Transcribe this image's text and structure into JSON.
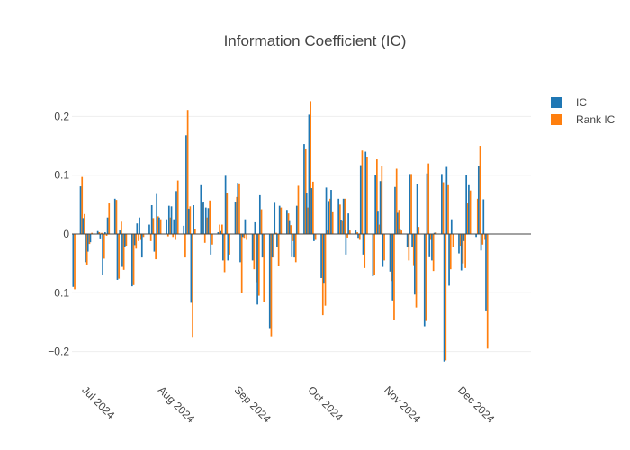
{
  "chart_data": {
    "type": "bar",
    "title": "Information Coefficient (IC)",
    "xlabel": "",
    "ylabel": "",
    "x_start": "2024-06-28",
    "x_end": "2024-12-31",
    "ylim": [
      -0.245,
      0.245
    ],
    "yticks": [
      -0.2,
      -0.1,
      0,
      0.1,
      0.2
    ],
    "ytick_labels": [
      "−0.2",
      "−0.1",
      "0",
      "0.1",
      "0.2"
    ],
    "xticks": [
      {
        "date": "2024-07-01",
        "label": "Jul 2024"
      },
      {
        "date": "2024-08-01",
        "label": "Aug 2024"
      },
      {
        "date": "2024-09-01",
        "label": "Sep 2024"
      },
      {
        "date": "2024-10-01",
        "label": "Oct 2024"
      },
      {
        "date": "2024-11-01",
        "label": "Nov 2024"
      },
      {
        "date": "2024-12-01",
        "label": "Dec 2024"
      }
    ],
    "legend_position": "top-right",
    "grid": true,
    "series": [
      {
        "name": "IC",
        "color": "#1f77b4"
      },
      {
        "name": "Rank IC",
        "color": "#ff7f0e"
      }
    ],
    "points": [
      {
        "date": "2024-06-28",
        "ic": -0.09,
        "rank_ic": -0.094
      },
      {
        "date": "2024-07-01",
        "ic": 0.081,
        "rank_ic": 0.097
      },
      {
        "date": "2024-07-02",
        "ic": 0.027,
        "rank_ic": 0.034
      },
      {
        "date": "2024-07-03",
        "ic": -0.048,
        "rank_ic": -0.052
      },
      {
        "date": "2024-07-04",
        "ic": -0.03,
        "rank_ic": -0.017
      },
      {
        "date": "2024-07-05",
        "ic": -0.014,
        "rank_ic": 0.002
      },
      {
        "date": "2024-07-08",
        "ic": 0.005,
        "rank_ic": 0.003
      },
      {
        "date": "2024-07-09",
        "ic": -0.009,
        "rank_ic": 0.002
      },
      {
        "date": "2024-07-10",
        "ic": -0.07,
        "rank_ic": -0.042
      },
      {
        "date": "2024-07-11",
        "ic": 0.003,
        "rank_ic": -0.003
      },
      {
        "date": "2024-07-12",
        "ic": 0.028,
        "rank_ic": 0.052
      },
      {
        "date": "2024-07-15",
        "ic": 0.06,
        "rank_ic": 0.058
      },
      {
        "date": "2024-07-16",
        "ic": -0.078,
        "rank_ic": -0.076
      },
      {
        "date": "2024-07-17",
        "ic": 0.006,
        "rank_ic": 0.021
      },
      {
        "date": "2024-07-18",
        "ic": -0.056,
        "rank_ic": -0.061
      },
      {
        "date": "2024-07-19",
        "ic": -0.022,
        "rank_ic": -0.02
      },
      {
        "date": "2024-07-22",
        "ic": -0.089,
        "rank_ic": -0.087
      },
      {
        "date": "2024-07-23",
        "ic": -0.019,
        "rank_ic": -0.025
      },
      {
        "date": "2024-07-24",
        "ic": 0.018,
        "rank_ic": -0.012
      },
      {
        "date": "2024-07-25",
        "ic": 0.028,
        "rank_ic": -0.01
      },
      {
        "date": "2024-07-26",
        "ic": -0.04,
        "rank_ic": -0.005
      },
      {
        "date": "2024-07-29",
        "ic": 0.016,
        "rank_ic": -0.012
      },
      {
        "date": "2024-07-30",
        "ic": 0.049,
        "rank_ic": 0.027
      },
      {
        "date": "2024-07-31",
        "ic": -0.03,
        "rank_ic": -0.043
      },
      {
        "date": "2024-08-01",
        "ic": 0.068,
        "rank_ic": 0.03
      },
      {
        "date": "2024-08-02",
        "ic": 0.028,
        "rank_ic": 0.025
      },
      {
        "date": "2024-08-05",
        "ic": 0.025,
        "rank_ic": -0.004
      },
      {
        "date": "2024-08-06",
        "ic": 0.048,
        "rank_ic": 0.028
      },
      {
        "date": "2024-08-07",
        "ic": 0.047,
        "rank_ic": -0.005
      },
      {
        "date": "2024-08-08",
        "ic": 0.025,
        "rank_ic": -0.01
      },
      {
        "date": "2024-08-09",
        "ic": 0.073,
        "rank_ic": 0.091
      },
      {
        "date": "2024-08-12",
        "ic": 0.014,
        "rank_ic": -0.04
      },
      {
        "date": "2024-08-13",
        "ic": 0.168,
        "rank_ic": 0.211
      },
      {
        "date": "2024-08-14",
        "ic": 0.043,
        "rank_ic": 0.047
      },
      {
        "date": "2024-08-15",
        "ic": -0.117,
        "rank_ic": -0.175
      },
      {
        "date": "2024-08-16",
        "ic": 0.049,
        "rank_ic": 0.008
      },
      {
        "date": "2024-08-19",
        "ic": 0.083,
        "rank_ic": 0.052
      },
      {
        "date": "2024-08-20",
        "ic": 0.055,
        "rank_ic": -0.015
      },
      {
        "date": "2024-08-21",
        "ic": 0.045,
        "rank_ic": 0.028
      },
      {
        "date": "2024-08-22",
        "ic": 0.044,
        "rank_ic": 0.057
      },
      {
        "date": "2024-08-23",
        "ic": -0.035,
        "rank_ic": -0.018
      },
      {
        "date": "2024-08-26",
        "ic": 0.003,
        "rank_ic": 0.016
      },
      {
        "date": "2024-08-27",
        "ic": 0.005,
        "rank_ic": 0.016
      },
      {
        "date": "2024-08-28",
        "ic": -0.045,
        "rank_ic": -0.065
      },
      {
        "date": "2024-08-29",
        "ic": 0.099,
        "rank_ic": 0.069
      },
      {
        "date": "2024-08-30",
        "ic": -0.045,
        "rank_ic": -0.035
      },
      {
        "date": "2024-09-02",
        "ic": 0.055,
        "rank_ic": 0.063
      },
      {
        "date": "2024-09-03",
        "ic": 0.087,
        "rank_ic": 0.086
      },
      {
        "date": "2024-09-04",
        "ic": -0.048,
        "rank_ic": -0.1
      },
      {
        "date": "2024-09-05",
        "ic": -0.005,
        "rank_ic": -0.008
      },
      {
        "date": "2024-09-06",
        "ic": 0.025,
        "rank_ic": -0.01
      },
      {
        "date": "2024-09-09",
        "ic": -0.045,
        "rank_ic": -0.06
      },
      {
        "date": "2024-09-10",
        "ic": 0.02,
        "rank_ic": -0.082
      },
      {
        "date": "2024-09-11",
        "ic": -0.12,
        "rank_ic": -0.105
      },
      {
        "date": "2024-09-12",
        "ic": 0.066,
        "rank_ic": 0.042
      },
      {
        "date": "2024-09-13",
        "ic": -0.04,
        "rank_ic": -0.115
      },
      {
        "date": "2024-09-16",
        "ic": -0.16,
        "rank_ic": -0.174
      },
      {
        "date": "2024-09-17",
        "ic": -0.04,
        "rank_ic": -0.04
      },
      {
        "date": "2024-09-18",
        "ic": 0.053,
        "rank_ic": 0.002
      },
      {
        "date": "2024-09-19",
        "ic": -0.022,
        "rank_ic": -0.055
      },
      {
        "date": "2024-09-20",
        "ic": 0.048,
        "rank_ic": 0.045
      },
      {
        "date": "2024-09-23",
        "ic": 0.041,
        "rank_ic": 0.035
      },
      {
        "date": "2024-09-24",
        "ic": 0.022,
        "rank_ic": 0.015
      },
      {
        "date": "2024-09-25",
        "ic": -0.038,
        "rank_ic": -0.012
      },
      {
        "date": "2024-09-26",
        "ic": -0.04,
        "rank_ic": -0.048
      },
      {
        "date": "2024-09-27",
        "ic": 0.048,
        "rank_ic": 0.082
      },
      {
        "date": "2024-09-30",
        "ic": 0.153,
        "rank_ic": 0.144
      },
      {
        "date": "2024-10-01",
        "ic": 0.07,
        "rank_ic": 0.045
      },
      {
        "date": "2024-10-02",
        "ic": 0.203,
        "rank_ic": 0.226
      },
      {
        "date": "2024-10-03",
        "ic": 0.078,
        "rank_ic": 0.089
      },
      {
        "date": "2024-10-04",
        "ic": -0.012,
        "rank_ic": -0.01
      },
      {
        "date": "2024-10-07",
        "ic": -0.075,
        "rank_ic": -0.138
      },
      {
        "date": "2024-10-08",
        "ic": -0.083,
        "rank_ic": -0.122
      },
      {
        "date": "2024-10-09",
        "ic": 0.079,
        "rank_ic": 0.006
      },
      {
        "date": "2024-10-10",
        "ic": 0.056,
        "rank_ic": 0.06
      },
      {
        "date": "2024-10-11",
        "ic": 0.075,
        "rank_ic": 0.037
      },
      {
        "date": "2024-10-14",
        "ic": 0.06,
        "rank_ic": 0.05
      },
      {
        "date": "2024-10-15",
        "ic": 0.023,
        "rank_ic": 0.022
      },
      {
        "date": "2024-10-16",
        "ic": 0.06,
        "rank_ic": 0.06
      },
      {
        "date": "2024-10-17",
        "ic": -0.035,
        "rank_ic": -0.006
      },
      {
        "date": "2024-10-18",
        "ic": 0.035,
        "rank_ic": 0.006
      },
      {
        "date": "2024-10-21",
        "ic": 0.006,
        "rank_ic": 0.003
      },
      {
        "date": "2024-10-22",
        "ic": -0.008,
        "rank_ic": -0.01
      },
      {
        "date": "2024-10-23",
        "ic": 0.117,
        "rank_ic": 0.142
      },
      {
        "date": "2024-10-24",
        "ic": -0.035,
        "rank_ic": -0.058
      },
      {
        "date": "2024-10-25",
        "ic": 0.14,
        "rank_ic": 0.131
      },
      {
        "date": "2024-10-28",
        "ic": -0.072,
        "rank_ic": -0.069
      },
      {
        "date": "2024-10-29",
        "ic": 0.101,
        "rank_ic": 0.127
      },
      {
        "date": "2024-10-30",
        "ic": 0.038,
        "rank_ic": 0.016
      },
      {
        "date": "2024-10-31",
        "ic": 0.09,
        "rank_ic": 0.115
      },
      {
        "date": "2024-11-01",
        "ic": -0.056,
        "rank_ic": -0.045
      },
      {
        "date": "2024-11-04",
        "ic": -0.064,
        "rank_ic": -0.08
      },
      {
        "date": "2024-11-05",
        "ic": -0.113,
        "rank_ic": -0.147
      },
      {
        "date": "2024-11-06",
        "ic": 0.08,
        "rank_ic": 0.111
      },
      {
        "date": "2024-11-07",
        "ic": 0.036,
        "rank_ic": 0.041
      },
      {
        "date": "2024-11-08",
        "ic": 0.008,
        "rank_ic": 0.006
      },
      {
        "date": "2024-11-11",
        "ic": -0.023,
        "rank_ic": -0.045
      },
      {
        "date": "2024-11-12",
        "ic": 0.102,
        "rank_ic": 0.102
      },
      {
        "date": "2024-11-13",
        "ic": -0.023,
        "rank_ic": -0.053
      },
      {
        "date": "2024-11-14",
        "ic": -0.103,
        "rank_ic": -0.125
      },
      {
        "date": "2024-11-15",
        "ic": 0.085,
        "rank_ic": 0.012
      },
      {
        "date": "2024-11-18",
        "ic": -0.157,
        "rank_ic": -0.148
      },
      {
        "date": "2024-11-19",
        "ic": 0.103,
        "rank_ic": 0.12
      },
      {
        "date": "2024-11-20",
        "ic": -0.038,
        "rank_ic": -0.01
      },
      {
        "date": "2024-11-21",
        "ic": -0.045,
        "rank_ic": -0.063
      },
      {
        "date": "2024-11-22",
        "ic": 0.002,
        "rank_ic": 0.003
      },
      {
        "date": "2024-11-25",
        "ic": 0.102,
        "rank_ic": 0.088
      },
      {
        "date": "2024-11-26",
        "ic": -0.217,
        "rank_ic": -0.215
      },
      {
        "date": "2024-11-27",
        "ic": 0.114,
        "rank_ic": 0.083
      },
      {
        "date": "2024-11-28",
        "ic": -0.088,
        "rank_ic": -0.06
      },
      {
        "date": "2024-11-29",
        "ic": 0.025,
        "rank_ic": -0.022
      },
      {
        "date": "2024-12-02",
        "ic": -0.033,
        "rank_ic": -0.02
      },
      {
        "date": "2024-12-03",
        "ic": -0.062,
        "rank_ic": -0.05
      },
      {
        "date": "2024-12-04",
        "ic": -0.012,
        "rank_ic": -0.058
      },
      {
        "date": "2024-12-05",
        "ic": 0.101,
        "rank_ic": 0.052
      },
      {
        "date": "2024-12-06",
        "ic": 0.083,
        "rank_ic": 0.074
      },
      {
        "date": "2024-12-09",
        "ic": -0.005,
        "rank_ic": 0.06
      },
      {
        "date": "2024-12-10",
        "ic": 0.116,
        "rank_ic": 0.15
      },
      {
        "date": "2024-12-11",
        "ic": -0.028,
        "rank_ic": -0.018
      },
      {
        "date": "2024-12-12",
        "ic": 0.059,
        "rank_ic": -0.01
      },
      {
        "date": "2024-12-13",
        "ic": -0.13,
        "rank_ic": -0.195
      }
    ]
  }
}
